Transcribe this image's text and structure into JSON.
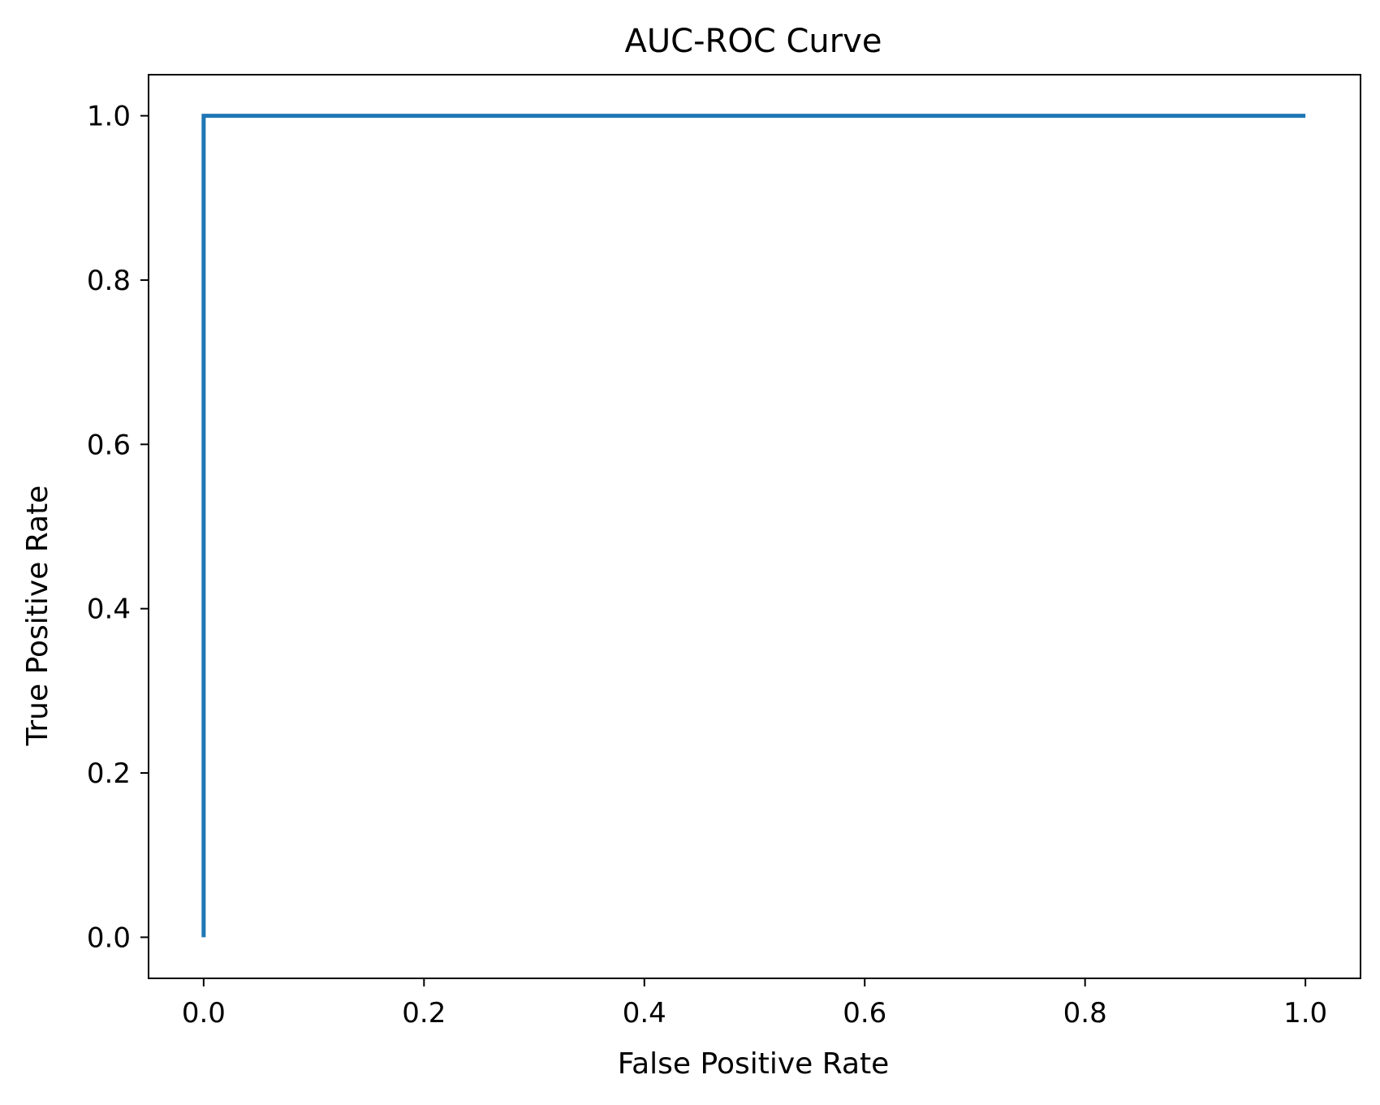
{
  "chart_data": {
    "type": "line",
    "title": "AUC-ROC Curve",
    "xlabel": "False Positive Rate",
    "ylabel": "True Positive Rate",
    "xlim": [
      -0.05,
      1.05
    ],
    "ylim": [
      -0.05,
      1.05
    ],
    "xticks": [
      0.0,
      0.2,
      0.4,
      0.6,
      0.8,
      1.0
    ],
    "yticks": [
      0.0,
      0.2,
      0.4,
      0.6,
      0.8,
      1.0
    ],
    "xtick_labels": [
      "0.0",
      "0.2",
      "0.4",
      "0.6",
      "0.8",
      "1.0"
    ],
    "ytick_labels": [
      "0.0",
      "0.2",
      "0.4",
      "0.6",
      "0.8",
      "1.0"
    ],
    "grid": false,
    "legend": "none",
    "series": [
      {
        "x": [
          0.0,
          0.0,
          1.0
        ],
        "y": [
          0.0,
          1.0,
          1.0
        ],
        "color": "#1f77b4"
      }
    ]
  }
}
